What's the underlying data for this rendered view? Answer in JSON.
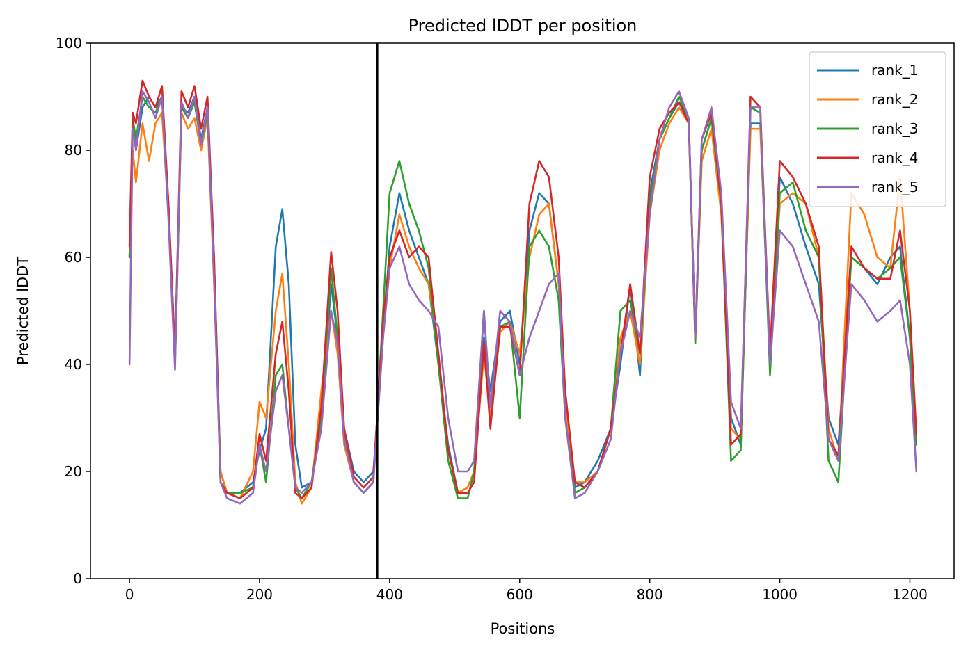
{
  "chart_data": {
    "type": "line",
    "title": "Predicted lDDT per position",
    "xlabel": "Positions",
    "ylabel": "Predicted lDDT",
    "xlim": [
      -60,
      1268
    ],
    "ylim": [
      0,
      100
    ],
    "xticks": [
      0,
      200,
      400,
      600,
      800,
      1000,
      1200
    ],
    "yticks": [
      0,
      20,
      40,
      60,
      80,
      100
    ],
    "grid": false,
    "legend_position": "top-right",
    "vline_x": 381,
    "vline_color": "#000000",
    "series": [
      {
        "name": "rank_1",
        "color": "#1f77b4",
        "x": [
          0,
          5,
          10,
          20,
          30,
          40,
          50,
          60,
          70,
          80,
          90,
          100,
          110,
          120,
          130,
          140,
          150,
          170,
          190,
          200,
          210,
          225,
          235,
          245,
          255,
          265,
          280,
          295,
          310,
          320,
          330,
          345,
          360,
          375,
          390,
          400,
          415,
          430,
          445,
          460,
          475,
          490,
          505,
          520,
          530,
          545,
          555,
          570,
          585,
          600,
          615,
          630,
          645,
          660,
          670,
          685,
          700,
          720,
          740,
          755,
          770,
          785,
          800,
          815,
          830,
          845,
          860,
          870,
          880,
          895,
          910,
          925,
          940,
          955,
          970,
          985,
          1000,
          1020,
          1040,
          1060,
          1075,
          1090,
          1110,
          1130,
          1150,
          1170,
          1185,
          1200,
          1210
        ],
        "values": [
          60,
          85,
          80,
          88,
          90,
          88,
          90,
          70,
          42,
          88,
          87,
          90,
          82,
          88,
          60,
          20,
          16,
          16,
          18,
          24,
          28,
          62,
          69,
          55,
          25,
          17,
          18,
          30,
          55,
          45,
          28,
          20,
          18,
          20,
          45,
          62,
          72,
          65,
          60,
          55,
          40,
          25,
          16,
          17,
          20,
          45,
          35,
          48,
          50,
          40,
          65,
          72,
          70,
          55,
          35,
          17,
          18,
          22,
          28,
          40,
          55,
          38,
          72,
          82,
          86,
          89,
          86,
          45,
          80,
          86,
          70,
          30,
          25,
          85,
          85,
          40,
          75,
          70,
          62,
          55,
          30,
          25,
          60,
          58,
          55,
          60,
          62,
          45,
          25
        ]
      },
      {
        "name": "rank_2",
        "color": "#ff7f0e",
        "x": [
          0,
          5,
          10,
          20,
          30,
          40,
          50,
          60,
          70,
          80,
          90,
          100,
          110,
          120,
          130,
          140,
          150,
          170,
          190,
          200,
          210,
          225,
          235,
          245,
          255,
          265,
          280,
          295,
          310,
          320,
          330,
          345,
          360,
          375,
          390,
          400,
          415,
          430,
          445,
          460,
          475,
          490,
          505,
          520,
          530,
          545,
          555,
          570,
          585,
          600,
          615,
          630,
          645,
          660,
          670,
          685,
          700,
          720,
          740,
          755,
          770,
          785,
          800,
          815,
          830,
          845,
          860,
          870,
          880,
          895,
          910,
          925,
          940,
          955,
          970,
          985,
          1000,
          1020,
          1040,
          1060,
          1075,
          1090,
          1110,
          1130,
          1150,
          1170,
          1185,
          1200,
          1210
        ],
        "values": [
          60,
          80,
          74,
          85,
          78,
          85,
          87,
          68,
          40,
          87,
          84,
          86,
          80,
          86,
          55,
          20,
          16,
          15,
          20,
          33,
          30,
          50,
          57,
          40,
          18,
          14,
          17,
          35,
          50,
          42,
          25,
          18,
          16,
          18,
          45,
          58,
          68,
          62,
          58,
          55,
          42,
          24,
          16,
          17,
          20,
          42,
          30,
          46,
          48,
          42,
          60,
          68,
          70,
          55,
          32,
          18,
          18,
          20,
          28,
          45,
          50,
          40,
          68,
          80,
          85,
          88,
          85,
          44,
          78,
          84,
          68,
          28,
          26,
          84,
          84,
          42,
          70,
          72,
          70,
          60,
          28,
          22,
          72,
          68,
          60,
          58,
          75,
          50,
          25
        ]
      },
      {
        "name": "rank_3",
        "color": "#2ca02c",
        "x": [
          0,
          5,
          10,
          20,
          30,
          40,
          50,
          60,
          70,
          80,
          90,
          100,
          110,
          120,
          130,
          140,
          150,
          170,
          190,
          200,
          210,
          225,
          235,
          245,
          255,
          265,
          280,
          295,
          310,
          320,
          330,
          345,
          360,
          375,
          390,
          400,
          415,
          430,
          445,
          460,
          475,
          490,
          505,
          520,
          530,
          545,
          555,
          570,
          585,
          600,
          615,
          630,
          645,
          660,
          670,
          685,
          700,
          720,
          740,
          755,
          770,
          785,
          800,
          815,
          830,
          845,
          860,
          870,
          880,
          895,
          910,
          925,
          940,
          955,
          970,
          985,
          1000,
          1020,
          1040,
          1060,
          1075,
          1090,
          1110,
          1130,
          1150,
          1170,
          1185,
          1200,
          1210
        ],
        "values": [
          60,
          86,
          82,
          90,
          88,
          87,
          90,
          68,
          40,
          88,
          86,
          89,
          81,
          87,
          58,
          18,
          16,
          16,
          17,
          25,
          18,
          38,
          40,
          28,
          17,
          15,
          18,
          30,
          58,
          45,
          27,
          18,
          16,
          18,
          50,
          72,
          78,
          70,
          65,
          58,
          40,
          22,
          15,
          15,
          20,
          50,
          32,
          47,
          48,
          30,
          62,
          65,
          62,
          52,
          30,
          16,
          17,
          20,
          28,
          50,
          52,
          42,
          70,
          82,
          86,
          90,
          86,
          44,
          80,
          86,
          70,
          22,
          24,
          88,
          87,
          38,
          72,
          74,
          65,
          60,
          22,
          18,
          60,
          58,
          56,
          58,
          60,
          45,
          25
        ]
      },
      {
        "name": "rank_4",
        "color": "#d62728",
        "x": [
          0,
          5,
          10,
          20,
          30,
          40,
          50,
          60,
          70,
          80,
          90,
          100,
          110,
          120,
          130,
          140,
          150,
          170,
          190,
          200,
          210,
          225,
          235,
          245,
          255,
          265,
          280,
          295,
          310,
          320,
          330,
          345,
          360,
          375,
          390,
          400,
          415,
          430,
          445,
          460,
          475,
          490,
          505,
          520,
          530,
          545,
          555,
          570,
          585,
          600,
          615,
          630,
          645,
          660,
          670,
          685,
          700,
          720,
          740,
          755,
          770,
          785,
          800,
          815,
          830,
          845,
          860,
          870,
          880,
          895,
          910,
          925,
          940,
          955,
          970,
          985,
          1000,
          1020,
          1040,
          1060,
          1075,
          1090,
          1110,
          1130,
          1150,
          1170,
          1185,
          1200,
          1210
        ],
        "values": [
          62,
          87,
          85,
          93,
          90,
          88,
          92,
          70,
          42,
          91,
          88,
          92,
          84,
          90,
          60,
          18,
          16,
          15,
          17,
          27,
          22,
          42,
          48,
          35,
          16,
          15,
          17,
          32,
          61,
          50,
          28,
          19,
          17,
          19,
          48,
          60,
          65,
          60,
          62,
          60,
          42,
          24,
          16,
          16,
          18,
          44,
          28,
          47,
          47,
          38,
          70,
          78,
          75,
          60,
          35,
          18,
          17,
          20,
          28,
          42,
          55,
          42,
          75,
          84,
          87,
          89,
          85,
          45,
          82,
          87,
          70,
          25,
          27,
          90,
          88,
          42,
          78,
          75,
          70,
          62,
          26,
          23,
          62,
          58,
          56,
          56,
          65,
          50,
          27
        ]
      },
      {
        "name": "rank_5",
        "color": "#9467bd",
        "x": [
          0,
          5,
          10,
          20,
          30,
          40,
          50,
          60,
          70,
          80,
          90,
          100,
          110,
          120,
          130,
          140,
          150,
          170,
          190,
          200,
          210,
          225,
          235,
          245,
          255,
          265,
          280,
          295,
          310,
          320,
          330,
          345,
          360,
          375,
          390,
          400,
          415,
          430,
          445,
          460,
          475,
          490,
          505,
          520,
          530,
          545,
          555,
          570,
          585,
          600,
          615,
          630,
          645,
          660,
          670,
          685,
          700,
          720,
          740,
          755,
          770,
          785,
          800,
          815,
          830,
          845,
          860,
          870,
          880,
          895,
          910,
          925,
          940,
          955,
          970,
          985,
          1000,
          1020,
          1040,
          1060,
          1075,
          1090,
          1110,
          1130,
          1150,
          1170,
          1185,
          1200,
          1210
        ],
        "values": [
          40,
          84,
          80,
          91,
          89,
          86,
          90,
          67,
          39,
          89,
          86,
          90,
          81,
          88,
          56,
          18,
          15,
          14,
          16,
          25,
          20,
          35,
          38,
          28,
          17,
          16,
          18,
          28,
          50,
          44,
          26,
          18,
          16,
          18,
          45,
          58,
          62,
          55,
          52,
          50,
          47,
          30,
          20,
          20,
          22,
          50,
          32,
          50,
          48,
          38,
          45,
          50,
          55,
          57,
          30,
          15,
          16,
          20,
          26,
          42,
          50,
          45,
          68,
          82,
          88,
          91,
          86,
          45,
          82,
          88,
          72,
          33,
          28,
          88,
          88,
          40,
          65,
          62,
          55,
          48,
          26,
          22,
          55,
          52,
          48,
          50,
          52,
          40,
          20
        ]
      }
    ]
  }
}
